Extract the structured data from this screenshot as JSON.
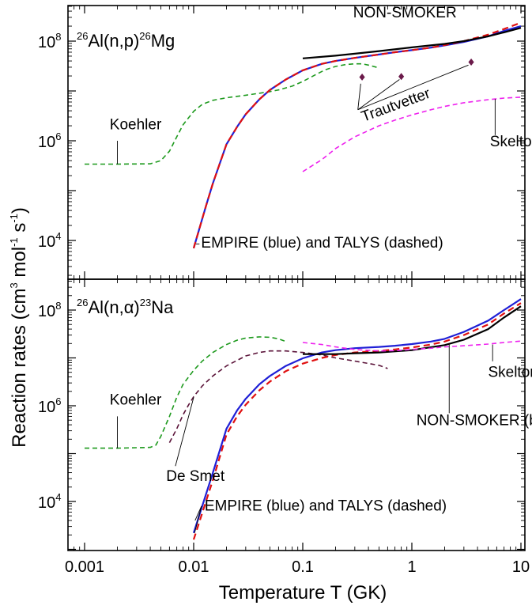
{
  "chart_data": [
    {
      "type": "line",
      "title": "26Al(n,p)26Mg",
      "title_parts": {
        "pre_mass": "26",
        "reaction": "Al(n,p)",
        "post_mass": "26",
        "product": "Mg"
      },
      "xlabel": "Temperature T (GK)",
      "ylabel": "Reaction rates (cm3 mol-1 s-1)",
      "x_scale": "log",
      "y_scale": "log",
      "xlim": [
        0.00065,
        10.5
      ],
      "ylim": [
        2500,
        500000000
      ],
      "grid": false,
      "series": [
        {
          "name": "Koehler",
          "color": "#1e9a1e",
          "dash": "dashed",
          "x": [
            0.001,
            0.002,
            0.004,
            0.005,
            0.006,
            0.007,
            0.008,
            0.01,
            0.012,
            0.015,
            0.02,
            0.025,
            0.03,
            0.04,
            0.05,
            0.06,
            0.08,
            0.1,
            0.13,
            0.16,
            0.2,
            0.25,
            0.3,
            0.35,
            0.4,
            0.5
          ],
          "y": [
            340000,
            340000,
            345000,
            400000,
            620000,
            1200000,
            2100000,
            3900000,
            5400000,
            6500000,
            7300000,
            7800000,
            8200000,
            9000000,
            9700000,
            10500000,
            12500000,
            15500000,
            21000000,
            26500000,
            31000000,
            34000000,
            35000000,
            35000000,
            33000000,
            29000000
          ]
        },
        {
          "name": "EMPIRE",
          "color": "#1f1fd6",
          "dash": "solid",
          "x": [
            0.01,
            0.013,
            0.015,
            0.02,
            0.025,
            0.03,
            0.04,
            0.05,
            0.07,
            0.1,
            0.15,
            0.2,
            0.3,
            0.5,
            0.7,
            1,
            1.5,
            2,
            3,
            5,
            7,
            10
          ],
          "y": [
            7000,
            50000,
            140000,
            850000,
            1900000,
            3400000,
            6800000,
            10500000,
            17000000,
            26000000,
            35000000,
            40000000,
            46000000,
            54000000,
            60000000,
            66000000,
            74000000,
            82000000,
            96000000,
            125000000,
            160000000,
            200000000
          ]
        },
        {
          "name": "TALYS",
          "color": "#e01010",
          "dash": "dashed",
          "x": [
            0.01,
            0.013,
            0.015,
            0.02,
            0.025,
            0.03,
            0.04,
            0.05,
            0.07,
            0.1,
            0.15,
            0.2,
            0.3,
            0.5,
            0.7,
            1,
            1.5,
            2,
            3,
            5,
            7,
            10
          ],
          "y": [
            7000,
            50000,
            140000,
            850000,
            1900000,
            3400000,
            6800000,
            10500000,
            17000000,
            26000000,
            35000000,
            40000000,
            46000000,
            54000000,
            60000000,
            66000000,
            74000000,
            83000000,
            100000000,
            135000000,
            175000000,
            235000000
          ]
        },
        {
          "name": "NON-SMOKER",
          "color": "#000000",
          "dash": "solid",
          "x": [
            0.1,
            0.2,
            0.3,
            0.5,
            1,
            2,
            3,
            5,
            7,
            10
          ],
          "y": [
            45000000,
            51000000,
            56000000,
            63000000,
            75000000,
            88000000,
            100000000,
            125000000,
            150000000,
            185000000
          ]
        },
        {
          "name": "Skelton",
          "color": "#ee22ee",
          "dash": "dashed",
          "x": [
            0.1,
            0.15,
            0.2,
            0.3,
            0.5,
            0.7,
            1,
            1.5,
            2,
            3,
            5,
            7,
            10
          ],
          "y": [
            240000,
            420000,
            700000,
            1200000,
            2000000,
            2600000,
            3300000,
            4200000,
            4900000,
            5800000,
            6700000,
            7200000,
            7500000
          ]
        },
        {
          "name": "Trautvetter",
          "color": "#6b1a4a",
          "dash": "points",
          "x": [
            0.35,
            0.8,
            3.5
          ],
          "y": [
            19000000,
            19500000,
            38000000
          ]
        }
      ],
      "annotations": [
        {
          "text": "Koehler",
          "tx": 0.0017,
          "ty": 1700000,
          "leader": [
            [
              0.002,
              1000000
            ],
            [
              0.002,
              340000
            ]
          ]
        },
        {
          "text": "NON-SMOKER",
          "tx": 0.29,
          "ty": 300000000
        },
        {
          "text": "Trautvetter",
          "tx": 0.36,
          "ty": 2400000,
          "rotate": -20,
          "leaders": [
            [
              [
                0.32,
                4200000
              ],
              [
                0.34,
                14000000
              ]
            ],
            [
              [
                0.32,
                4200000
              ],
              [
                0.77,
                17000000
              ]
            ],
            [
              [
                0.32,
                4200000
              ],
              [
                3.3,
                33000000
              ]
            ]
          ]
        },
        {
          "text": "Skelton",
          "tx": 5.2,
          "ty": 780000,
          "leader": [
            [
              5.8,
              1300000
            ],
            [
              5.8,
              6900000
            ]
          ]
        },
        {
          "text": "EMPIRE (blue) and TALYS (dashed)",
          "tx": 0.0117,
          "ty": 7200,
          "leader": [
            [
              0.0105,
              8500
            ],
            [
              0.0113,
              8500
            ]
          ]
        }
      ]
    },
    {
      "type": "line",
      "title": "26Al(n,α)23Na",
      "title_parts": {
        "pre_mass": "26",
        "reaction": "Al(n,α)",
        "post_mass": "23",
        "product": "Na"
      },
      "xlabel": "Temperature T (GK)",
      "ylabel": "Reaction rates (cm3 mol-1 s-1)",
      "x_scale": "log",
      "y_scale": "log",
      "xlim": [
        0.00065,
        10.5
      ],
      "ylim": [
        600,
        500000000
      ],
      "grid": false,
      "series": [
        {
          "name": "Koehler",
          "color": "#1e9a1e",
          "dash": "dashed",
          "x": [
            0.001,
            0.002,
            0.004,
            0.0045,
            0.005,
            0.006,
            0.007,
            0.008,
            0.01,
            0.012,
            0.015,
            0.02,
            0.025,
            0.03,
            0.04,
            0.05,
            0.06,
            0.07
          ],
          "y": [
            130000,
            130000,
            135000,
            150000,
            230000,
            600000,
            1500000,
            2800000,
            5500000,
            8600000,
            13000000,
            19000000,
            23500000,
            26000000,
            27500000,
            27000000,
            25000000,
            22000000
          ]
        },
        {
          "name": "De Smet",
          "color": "#5a1238",
          "dash": "dashed",
          "x": [
            0.006,
            0.007,
            0.008,
            0.009,
            0.01,
            0.012,
            0.015,
            0.02,
            0.03,
            0.04,
            0.05,
            0.07,
            0.1,
            0.15,
            0.2,
            0.3,
            0.5,
            0.6
          ],
          "y": [
            170000,
            330000,
            650000,
            1050000,
            1550000,
            2600000,
            4200000,
            6800000,
            11000000,
            13000000,
            14000000,
            14000000,
            13000000,
            11500000,
            10000000,
            8600000,
            7000000,
            6000000
          ]
        },
        {
          "name": "EMPIRE",
          "color": "#1f1fd6",
          "dash": "solid",
          "x": [
            0.01,
            0.015,
            0.02,
            0.025,
            0.03,
            0.04,
            0.05,
            0.07,
            0.1,
            0.15,
            0.2,
            0.3,
            0.5,
            0.7,
            1,
            1.5,
            2,
            3,
            5,
            7,
            10
          ],
          "y": [
            2200,
            40000,
            330000,
            800000,
            1400000,
            2800000,
            4200000,
            6800000,
            9800000,
            13000000,
            14500000,
            16000000,
            17000000,
            18000000,
            19500000,
            22000000,
            25000000,
            35000000,
            60000000,
            100000000,
            170000000
          ]
        },
        {
          "name": "TALYS",
          "color": "#e01010",
          "dash": "dashed",
          "x": [
            0.01,
            0.015,
            0.02,
            0.025,
            0.03,
            0.04,
            0.05,
            0.07,
            0.1,
            0.15,
            0.2,
            0.3,
            0.5,
            0.7,
            1,
            1.5,
            2,
            3,
            5,
            7,
            10
          ],
          "y": [
            1600,
            28000,
            250000,
            600000,
            1050000,
            2100000,
            3200000,
            5300000,
            7600000,
            10000000,
            11500000,
            13000000,
            14000000,
            15000000,
            16500000,
            19000000,
            22000000,
            30000000,
            50000000,
            85000000,
            140000000
          ]
        },
        {
          "name": "NON-SMOKER",
          "color": "#000000",
          "dash": "solid",
          "x": [
            0.1,
            0.2,
            0.3,
            0.5,
            1,
            2,
            3,
            5,
            7,
            10
          ],
          "y": [
            12000000,
            12000000,
            12500000,
            13000000,
            14500000,
            18500000,
            24000000,
            40000000,
            70000000,
            120000000
          ]
        },
        {
          "name": "Skelton",
          "color": "#ee22ee",
          "dash": "dashed",
          "x": [
            0.1,
            0.15,
            0.2,
            0.3,
            0.5,
            0.7,
            1,
            1.5,
            2,
            3,
            5,
            7,
            10
          ],
          "y": [
            21000000,
            19000000,
            17000000,
            15000000,
            14000000,
            14200000,
            15000000,
            16000000,
            17000000,
            18000000,
            19500000,
            21000000,
            22500000
          ]
        }
      ],
      "annotations": [
        {
          "text": "Koehler",
          "tx": 0.0017,
          "ty": 1050000,
          "leader": [
            [
              0.002,
              600000
            ],
            [
              0.002,
              130000
            ]
          ]
        },
        {
          "text": "De Smet",
          "tx": 0.0056,
          "ty": 27000,
          "leader": [
            [
              0.0068,
              55000
            ],
            [
              0.01,
              1500000
            ]
          ]
        },
        {
          "text": "Skelton",
          "tx": 5.0,
          "ty": 4000000,
          "leader": [
            [
              5.5,
              8500000
            ],
            [
              5.5,
              19000000
            ]
          ]
        },
        {
          "text": "NON-SMOKER (black)",
          "tx": 1.1,
          "ty": 390000,
          "leader": [
            [
              2.2,
              700000
            ],
            [
              2.2,
              19000000
            ]
          ]
        },
        {
          "text": "De Smet",
          "tx": 0.0056,
          "ty": 27000
        },
        {
          "text": "EMPIRE (blue) and TALYS (dashed)",
          "tx": 0.0126,
          "ty": 6500,
          "leaders": [
            [
              [
                0.0118,
                8000
              ],
              [
                0.0102,
                2200
              ]
            ],
            [
              [
                0.0118,
                8000
              ],
              [
                0.0103,
                4000
              ]
            ]
          ]
        }
      ]
    }
  ],
  "axes": {
    "xlabel": "Temperature T (GK)",
    "ylabel": "Reaction rates (cm3 mol-1 s-1)",
    "x_ticks": [
      0.001,
      0.01,
      0.1,
      1,
      10
    ],
    "x_tick_labels": [
      "0.001",
      "0.01",
      "0.1",
      "1",
      "10"
    ],
    "y_ticks": [
      10000,
      1000000,
      100000000
    ],
    "y_tick_base": "10",
    "y_tick_exponents": [
      "4",
      "6",
      "8"
    ]
  }
}
